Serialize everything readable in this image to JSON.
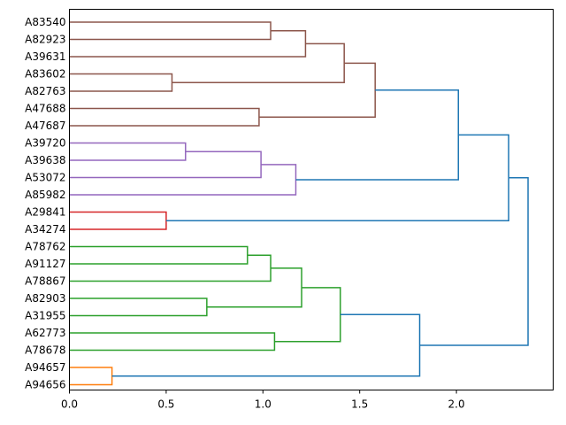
{
  "chart_data": {
    "type": "dendrogram",
    "orientation": "left",
    "xlim": [
      0,
      2.5
    ],
    "x_ticks": [
      {
        "value": 0,
        "label": "0.0"
      },
      {
        "value": 0.5,
        "label": "0.5"
      },
      {
        "value": 1.0,
        "label": "1.0"
      },
      {
        "value": 1.5,
        "label": "1.5"
      },
      {
        "value": 2.0,
        "label": "2.0"
      }
    ],
    "leaves": [
      "A83540",
      "A82923",
      "A39631",
      "A83602",
      "A82763",
      "A47688",
      "A47687",
      "A39720",
      "A39638",
      "A53072",
      "A85982",
      "A29841",
      "A34274",
      "A78762",
      "A91127",
      "A78867",
      "A82903",
      "A31955",
      "A62773",
      "A78678",
      "A94657",
      "A94656"
    ],
    "colors": {
      "brown": "#8c564b",
      "purple": "#9467bd",
      "red": "#d62728",
      "green": "#2ca02c",
      "orange": "#ff7f0e",
      "blue": "#1f77b4"
    },
    "merges": [
      {
        "id": "n1",
        "children": [
          "A83540",
          "A82923"
        ],
        "height": 1.04,
        "color": "brown"
      },
      {
        "id": "n2",
        "children": [
          "n1",
          "A39631"
        ],
        "height": 1.22,
        "color": "brown"
      },
      {
        "id": "n3",
        "children": [
          "A83602",
          "A82763"
        ],
        "height": 0.53,
        "color": "brown"
      },
      {
        "id": "n4",
        "children": [
          "n2",
          "n3"
        ],
        "height": 1.42,
        "color": "brown"
      },
      {
        "id": "n5",
        "children": [
          "A47688",
          "A47687"
        ],
        "height": 0.98,
        "color": "brown"
      },
      {
        "id": "n6",
        "children": [
          "n4",
          "n5"
        ],
        "height": 1.58,
        "color": "brown"
      },
      {
        "id": "n7",
        "children": [
          "A39720",
          "A39638"
        ],
        "height": 0.6,
        "color": "purple"
      },
      {
        "id": "n8",
        "children": [
          "n7",
          "A53072"
        ],
        "height": 0.99,
        "color": "purple"
      },
      {
        "id": "n9",
        "children": [
          "n8",
          "A85982"
        ],
        "height": 1.17,
        "color": "purple"
      },
      {
        "id": "n10",
        "children": [
          "n6",
          "n9"
        ],
        "height": 2.01,
        "color": "blue"
      },
      {
        "id": "n11",
        "children": [
          "A29841",
          "A34274"
        ],
        "height": 0.5,
        "color": "red"
      },
      {
        "id": "n12",
        "children": [
          "n10",
          "n11"
        ],
        "height": 2.27,
        "color": "blue"
      },
      {
        "id": "n13",
        "children": [
          "A78762",
          "A91127"
        ],
        "height": 0.92,
        "color": "green"
      },
      {
        "id": "n14",
        "children": [
          "n13",
          "A78867"
        ],
        "height": 1.04,
        "color": "green"
      },
      {
        "id": "n15",
        "children": [
          "A82903",
          "A31955"
        ],
        "height": 0.71,
        "color": "green"
      },
      {
        "id": "n16",
        "children": [
          "n14",
          "n15"
        ],
        "height": 1.2,
        "color": "green"
      },
      {
        "id": "n17",
        "children": [
          "A62773",
          "A78678"
        ],
        "height": 1.06,
        "color": "green"
      },
      {
        "id": "n18",
        "children": [
          "n16",
          "n17"
        ],
        "height": 1.4,
        "color": "green"
      },
      {
        "id": "n19",
        "children": [
          "A94657",
          "A94656"
        ],
        "height": 0.22,
        "color": "orange"
      },
      {
        "id": "n20",
        "children": [
          "n18",
          "n19"
        ],
        "height": 1.81,
        "color": "blue"
      },
      {
        "id": "n21",
        "children": [
          "n12",
          "n20"
        ],
        "height": 2.37,
        "color": "blue"
      }
    ]
  }
}
